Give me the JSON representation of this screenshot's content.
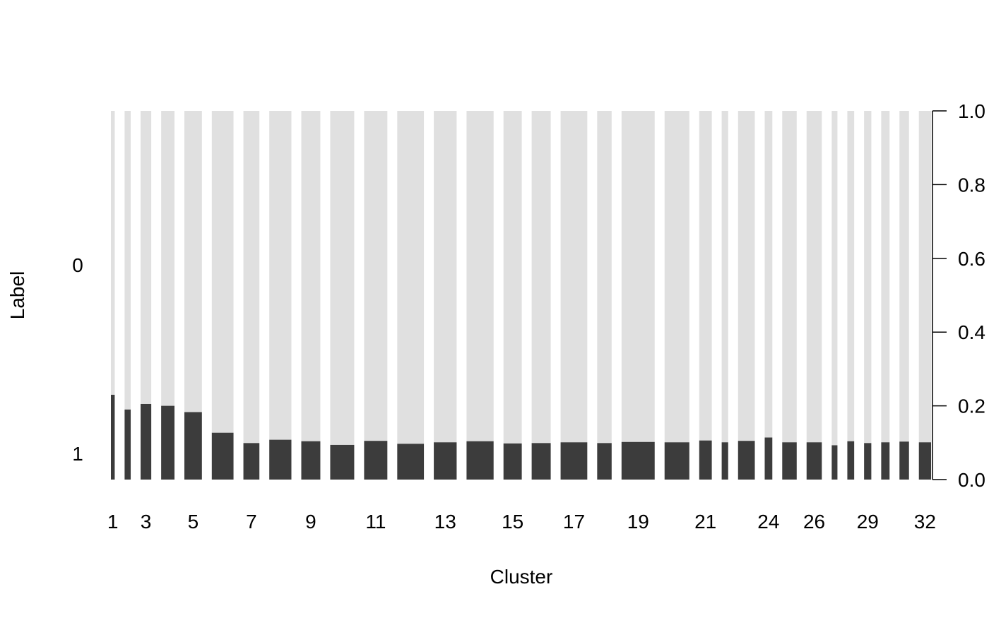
{
  "chart_data": {
    "type": "bar",
    "subtype": "spineplot",
    "xlabel": "Cluster",
    "ylabel": "Label",
    "categories": [
      "1",
      "2",
      "3",
      "4",
      "5",
      "6",
      "7",
      "8",
      "9",
      "10",
      "11",
      "12",
      "13",
      "14",
      "15",
      "16",
      "17",
      "18",
      "19",
      "20",
      "21",
      "22",
      "23",
      "24",
      "25",
      "26",
      "27",
      "28",
      "29",
      "30",
      "31",
      "32"
    ],
    "x_tick_labels": [
      "1",
      "3",
      "5",
      "7",
      "9",
      "11",
      "13",
      "15",
      "17",
      "19",
      "21",
      "24",
      "26",
      "29",
      "32"
    ],
    "left_axis_labels": [
      "0",
      "1"
    ],
    "right_axis": {
      "ticks": [
        "0.0",
        "0.2",
        "0.4",
        "0.6",
        "0.8",
        "1.0"
      ],
      "ylim": [
        0,
        1
      ]
    },
    "series": [
      {
        "name": "1",
        "values": [
          0.23,
          0.19,
          0.205,
          0.2,
          0.183,
          0.127,
          0.099,
          0.108,
          0.104,
          0.094,
          0.105,
          0.097,
          0.101,
          0.104,
          0.098,
          0.099,
          0.101,
          0.099,
          0.102,
          0.101,
          0.106,
          0.101,
          0.105,
          0.114,
          0.101,
          0.101,
          0.093,
          0.104,
          0.099,
          0.101,
          0.103,
          0.101
        ]
      },
      {
        "name": "0",
        "values": [
          0.77,
          0.81,
          0.795,
          0.8,
          0.817,
          0.873,
          0.901,
          0.892,
          0.896,
          0.906,
          0.895,
          0.903,
          0.899,
          0.896,
          0.902,
          0.901,
          0.899,
          0.901,
          0.898,
          0.899,
          0.894,
          0.899,
          0.895,
          0.886,
          0.899,
          0.899,
          0.907,
          0.896,
          0.901,
          0.899,
          0.897,
          0.899
        ]
      }
    ],
    "relative_widths": [
      0.1,
      0.16,
      0.28,
      0.35,
      0.46,
      0.57,
      0.42,
      0.58,
      0.5,
      0.63,
      0.61,
      0.7,
      0.6,
      0.71,
      0.48,
      0.5,
      0.7,
      0.38,
      0.87,
      0.65,
      0.33,
      0.17,
      0.44,
      0.2,
      0.38,
      0.4,
      0.15,
      0.18,
      0.19,
      0.22,
      0.25,
      0.32
    ],
    "colors": {
      "1": "#3c3c3c",
      "0": "#e0e0e0"
    },
    "grid": false,
    "legend": "none"
  }
}
